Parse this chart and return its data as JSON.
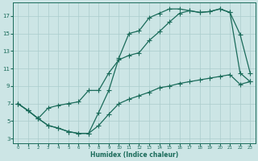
{
  "xlabel": "Humidex (Indice chaleur)",
  "bg_color": "#cce5e5",
  "grid_color": "#aacccc",
  "line_color": "#1a6b5a",
  "xlim": [
    -0.5,
    23.5
  ],
  "ylim": [
    2.5,
    18.5
  ],
  "xticks": [
    0,
    1,
    2,
    3,
    4,
    5,
    6,
    7,
    8,
    9,
    10,
    11,
    12,
    13,
    14,
    15,
    16,
    17,
    18,
    19,
    20,
    21,
    22,
    23
  ],
  "yticks": [
    3,
    5,
    7,
    9,
    11,
    13,
    15,
    17
  ],
  "curve1_x": [
    0,
    1,
    2,
    3,
    4,
    5,
    6,
    7,
    8,
    9,
    10,
    11,
    12,
    13,
    14,
    15,
    16,
    17,
    18,
    19,
    20,
    21,
    22,
    23
  ],
  "curve1_y": [
    7.0,
    6.2,
    5.3,
    6.5,
    6.8,
    7.0,
    7.2,
    8.5,
    8.5,
    10.5,
    12.0,
    12.5,
    12.8,
    14.2,
    15.2,
    16.3,
    17.3,
    17.6,
    17.4,
    17.5,
    17.8,
    17.4,
    14.9,
    10.5
  ],
  "curve2_x": [
    0,
    1,
    2,
    3,
    4,
    5,
    6,
    7,
    8,
    9,
    10,
    11,
    12,
    13,
    14,
    15,
    16,
    17,
    18,
    19,
    20,
    21,
    22,
    23
  ],
  "curve2_y": [
    7.0,
    6.2,
    5.3,
    4.5,
    4.2,
    3.8,
    3.6,
    3.6,
    6.0,
    8.5,
    12.2,
    15.0,
    15.3,
    16.8,
    17.3,
    17.8,
    17.8,
    17.6,
    17.4,
    17.5,
    17.8,
    17.4,
    10.5,
    9.5
  ],
  "curve3_x": [
    0,
    1,
    2,
    3,
    4,
    5,
    6,
    7,
    8,
    9,
    10,
    11,
    12,
    13,
    14,
    15,
    16,
    17,
    18,
    19,
    20,
    21,
    22,
    23
  ],
  "curve3_y": [
    7.0,
    6.2,
    5.3,
    4.5,
    4.2,
    3.8,
    3.6,
    3.6,
    4.5,
    5.8,
    7.0,
    7.5,
    7.9,
    8.3,
    8.8,
    9.0,
    9.3,
    9.5,
    9.7,
    9.9,
    10.1,
    10.3,
    9.2,
    9.5
  ],
  "marker": "+",
  "marker_size": 4,
  "linewidth": 0.9
}
